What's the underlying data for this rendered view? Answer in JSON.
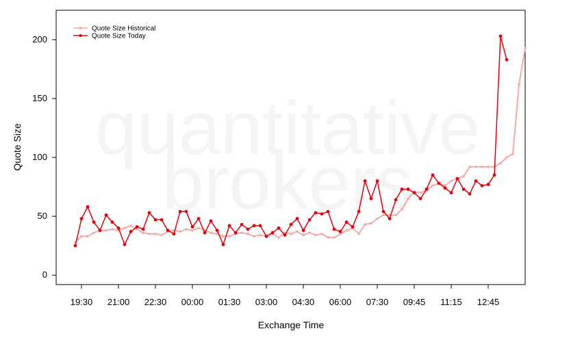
{
  "chart_data": {
    "type": "line",
    "title": "",
    "xlabel": "Exchange Time",
    "ylabel": "Quote Size",
    "ylim": [
      -8,
      225
    ],
    "y_ticks": [
      0,
      50,
      100,
      150,
      200
    ],
    "x_ticks": [
      {
        "i": 1,
        "label": "19:30"
      },
      {
        "i": 7,
        "label": "21:00"
      },
      {
        "i": 13,
        "label": "22:30"
      },
      {
        "i": 19,
        "label": "00:00"
      },
      {
        "i": 25,
        "label": "01:30"
      },
      {
        "i": 31,
        "label": "03:00"
      },
      {
        "i": 37,
        "label": "04:30"
      },
      {
        "i": 43,
        "label": "06:00"
      },
      {
        "i": 49,
        "label": "07:30"
      },
      {
        "i": 55,
        "label": "09:45"
      },
      {
        "i": 61,
        "label": "11:15"
      },
      {
        "i": 67,
        "label": "12:45"
      }
    ],
    "legend_position": "top-left",
    "watermark": [
      "quantitative",
      "brokers"
    ],
    "series": [
      {
        "name": "Quote Size Historical",
        "color": "#f4aaaa",
        "values": [
          28,
          33,
          33,
          36,
          38,
          38,
          39,
          38,
          40,
          42,
          39,
          36,
          35,
          35,
          34,
          37,
          38,
          37,
          39,
          38,
          40,
          38,
          36,
          35,
          33,
          33,
          35,
          36,
          35,
          33,
          34,
          33,
          35,
          32,
          36,
          35,
          37,
          34,
          36,
          34,
          35,
          32,
          32,
          35,
          38,
          40,
          35,
          43,
          44,
          48,
          51,
          51,
          51,
          56,
          65,
          71,
          70,
          72,
          76,
          78,
          76,
          80,
          82,
          84,
          92,
          92,
          92,
          92,
          92,
          95,
          100,
          103,
          162,
          193
        ]
      },
      {
        "name": "Quote Size Today",
        "color": "#e8000b",
        "values": [
          25,
          48,
          58,
          45,
          38,
          51,
          45,
          40,
          26,
          37,
          41,
          39,
          53,
          47,
          47,
          38,
          35,
          54,
          54,
          41,
          48,
          36,
          46,
          38,
          26,
          42,
          36,
          43,
          39,
          42,
          42,
          33,
          36,
          40,
          34,
          43,
          48,
          38,
          47,
          53,
          52,
          54,
          39,
          37,
          45,
          41,
          54,
          80,
          65,
          80,
          54,
          48,
          64,
          73,
          73,
          70,
          65,
          73,
          85,
          78,
          74,
          70,
          82,
          73,
          69,
          80,
          76,
          77,
          85,
          203,
          183
        ]
      }
    ]
  }
}
